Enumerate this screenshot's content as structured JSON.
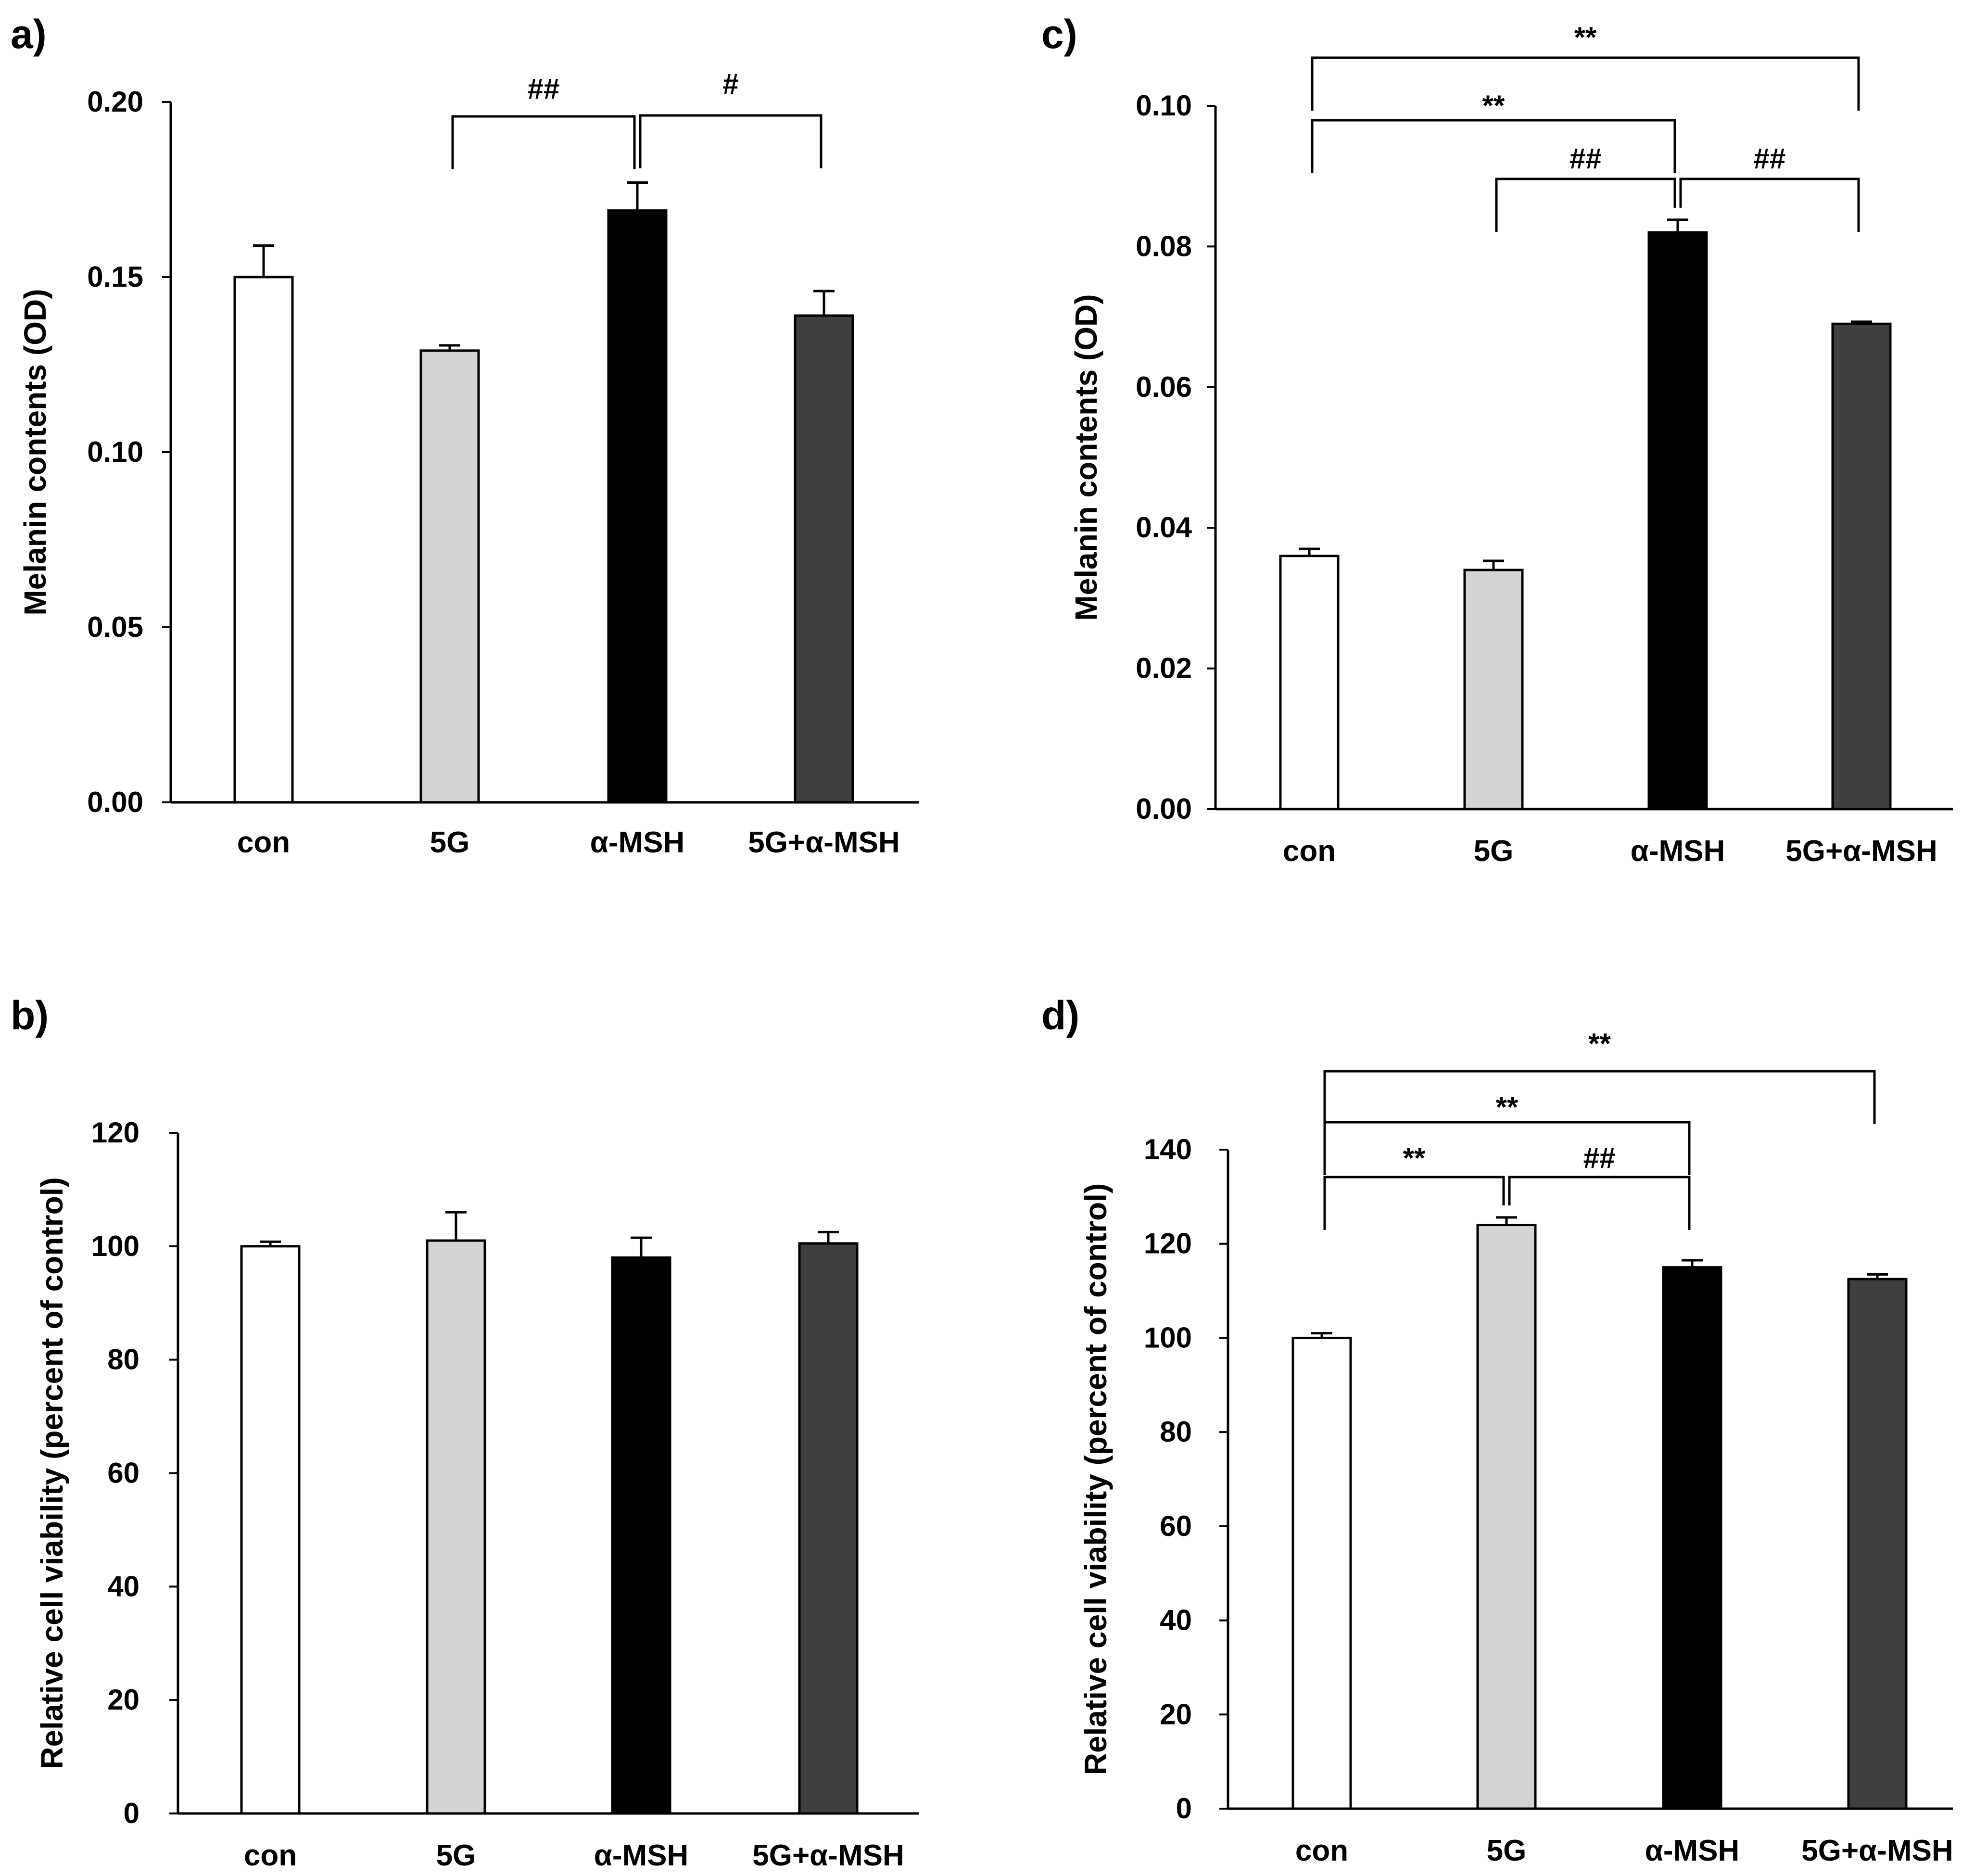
{
  "chart_data": [
    {
      "panel": "a)",
      "type": "bar",
      "ylabel": "Melanin contents (OD)",
      "ylim": [
        0,
        0.2
      ],
      "yticks": [
        "0.00",
        "0.05",
        "0.10",
        "0.15",
        "0.20"
      ],
      "categories": [
        "con",
        "5G",
        "α-MSH",
        "5G+α-MSH"
      ],
      "values": [
        0.15,
        0.129,
        0.169,
        0.139
      ],
      "errors": [
        0.009,
        0.0015,
        0.008,
        0.007
      ],
      "colors": [
        "#ffffff",
        "#d4d4d4",
        "#000000",
        "#404040"
      ],
      "significance": [
        {
          "from": 1,
          "to": 2,
          "label": "##"
        },
        {
          "from": 2,
          "to": 3,
          "label": "#"
        }
      ]
    },
    {
      "panel": "c)",
      "type": "bar",
      "ylabel": "Melanin contents (OD)",
      "ylim": [
        0,
        0.1
      ],
      "yticks": [
        "0.00",
        "0.02",
        "0.04",
        "0.06",
        "0.08",
        "0.10"
      ],
      "categories": [
        "con",
        "5G",
        "α-MSH",
        "5G+α-MSH"
      ],
      "values": [
        0.036,
        0.034,
        0.082,
        0.069
      ],
      "errors": [
        0.001,
        0.0013,
        0.0018,
        0.0003
      ],
      "colors": [
        "#ffffff",
        "#d4d4d4",
        "#000000",
        "#404040"
      ],
      "significance": [
        {
          "from": 0,
          "to": 3,
          "label": "**"
        },
        {
          "from": 0,
          "to": 2,
          "label": "**"
        },
        {
          "from": 1,
          "to": 2,
          "label": "##"
        },
        {
          "from": 2,
          "to": 3,
          "label": "##"
        }
      ]
    },
    {
      "panel": "b)",
      "type": "bar",
      "ylabel": "Relative cell viability (percent of control)",
      "ylim": [
        0,
        120
      ],
      "yticks": [
        "0",
        "20",
        "40",
        "60",
        "80",
        "100",
        "120"
      ],
      "categories": [
        "con",
        "5G",
        "α-MSH",
        "5G+α-MSH"
      ],
      "values": [
        100,
        101,
        98,
        100.5
      ],
      "errors": [
        0.8,
        5.0,
        3.5,
        2.0
      ],
      "colors": [
        "#ffffff",
        "#d4d4d4",
        "#000000",
        "#404040"
      ],
      "significance": []
    },
    {
      "panel": "d)",
      "type": "bar",
      "ylabel": "Relative cell viability (percent of control)",
      "ylim": [
        0,
        140
      ],
      "yticks": [
        "0",
        "20",
        "40",
        "60",
        "80",
        "100",
        "120",
        "140"
      ],
      "categories": [
        "con",
        "5G",
        "α-MSH",
        "5G+α-MSH"
      ],
      "values": [
        100,
        124,
        115,
        112.5
      ],
      "errors": [
        1.0,
        1.6,
        1.5,
        1.0
      ],
      "colors": [
        "#ffffff",
        "#d4d4d4",
        "#000000",
        "#404040"
      ],
      "significance": [
        {
          "from": 0,
          "to": 3,
          "label": "**"
        },
        {
          "from": 0,
          "to": 2,
          "label": "**"
        },
        {
          "from": 0,
          "to": 1,
          "label": "**"
        },
        {
          "from": 1,
          "to": 2,
          "label": "##"
        }
      ]
    }
  ]
}
